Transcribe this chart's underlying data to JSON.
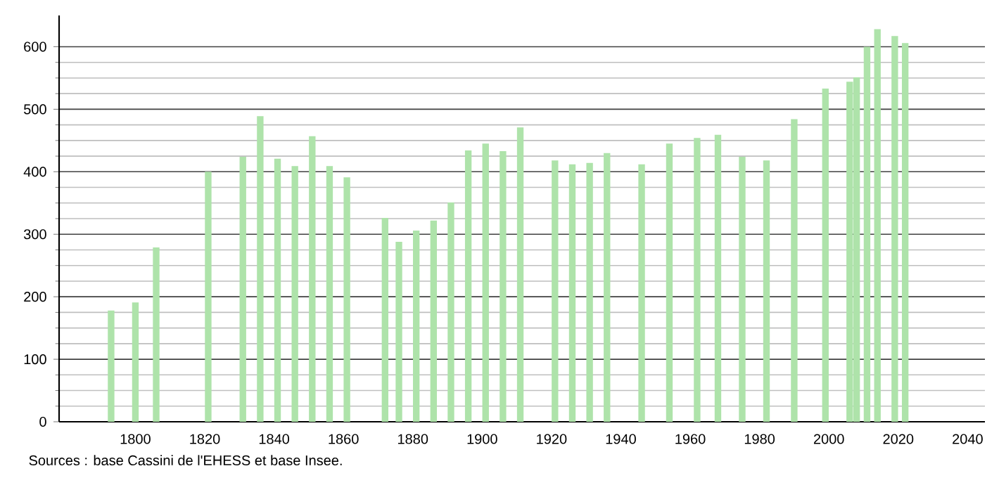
{
  "chart_data": {
    "type": "bar",
    "x": [
      1793,
      1800,
      1806,
      1821,
      1831,
      1836,
      1841,
      1846,
      1851,
      1856,
      1861,
      1872,
      1876,
      1881,
      1886,
      1891,
      1896,
      1901,
      1906,
      1911,
      1921,
      1926,
      1931,
      1936,
      1946,
      1954,
      1962,
      1968,
      1975,
      1982,
      1990,
      1999,
      2006,
      2008,
      2011,
      2014,
      2019,
      2022
    ],
    "values": [
      178,
      191,
      279,
      400,
      424,
      489,
      421,
      409,
      457,
      409,
      391,
      326,
      288,
      306,
      322,
      351,
      434,
      445,
      433,
      471,
      418,
      412,
      414,
      430,
      412,
      445,
      454,
      459,
      424,
      418,
      484,
      533,
      544,
      551,
      600,
      628,
      617,
      606
    ],
    "color": "#aee3aa",
    "xlim": [
      1778,
      2045
    ],
    "ylim": [
      0,
      650
    ],
    "xticks": [
      1800,
      1820,
      1840,
      1860,
      1880,
      1900,
      1920,
      1940,
      1960,
      1980,
      2000,
      2020,
      2040
    ],
    "yticks": [
      0,
      100,
      200,
      300,
      400,
      500,
      600
    ],
    "grid": "y",
    "annotations": [
      "Sources : base Cassini de l'EHESS et base Insee."
    ]
  }
}
